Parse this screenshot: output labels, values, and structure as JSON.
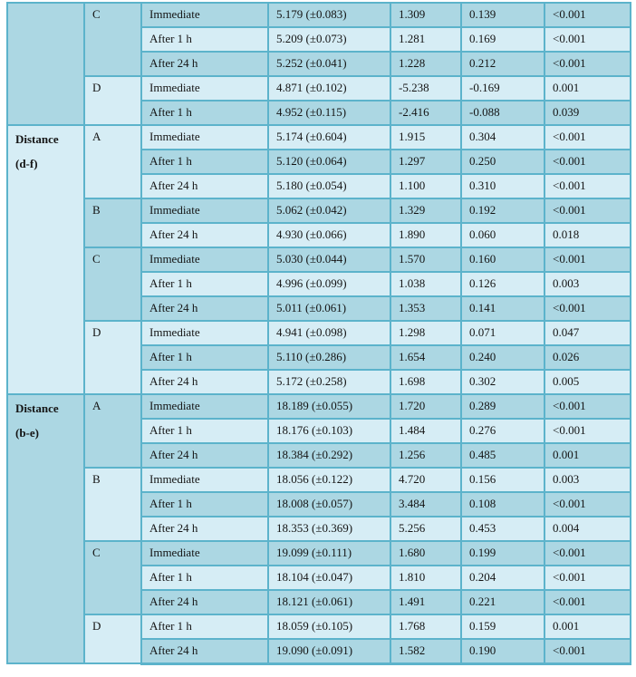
{
  "colors": {
    "row_medium": "#acd7e3",
    "row_light": "#d6edf5",
    "border": "#5cb3cb",
    "text": "#141414",
    "page_background": "#ffffff"
  },
  "table": {
    "description_note": "",
    "sections": [
      {
        "label": "",
        "label_lines": [],
        "groups": [
          {
            "letter": "C",
            "rows": [
              {
                "time": "Immediate",
                "value": "5.179 (±0.083)",
                "stat1": "1.309",
                "stat2": "0.139",
                "p": "<0.001"
              },
              {
                "time": "After 1 h",
                "value": "5.209 (±0.073)",
                "stat1": "1.281",
                "stat2": "0.169",
                "p": "<0.001"
              },
              {
                "time": "After 24 h",
                "value": "5.252 (±0.041)",
                "stat1": "1.228",
                "stat2": "0.212",
                "p": "<0.001"
              }
            ]
          },
          {
            "letter": "D",
            "rows": [
              {
                "time": "Immediate",
                "value": "4.871 (±0.102)",
                "stat1": "-5.238",
                "stat2": "-0.169",
                "p": "0.001"
              },
              {
                "time": "After 1 h",
                "value": "4.952 (±0.115)",
                "stat1": "-2.416",
                "stat2": "-0.088",
                "p": "0.039"
              }
            ]
          }
        ]
      },
      {
        "label": "Distance (d-f)",
        "label_lines": [
          "Distance",
          "(d-f)"
        ],
        "groups": [
          {
            "letter": "A",
            "rows": [
              {
                "time": "Immediate",
                "value": "5.174 (±0.604)",
                "stat1": "1.915",
                "stat2": "0.304",
                "p": "<0.001"
              },
              {
                "time": "After 1 h",
                "value": "5.120 (±0.064)",
                "stat1": "1.297",
                "stat2": "0.250",
                "p": "<0.001"
              },
              {
                "time": "After 24 h",
                "value": "5.180 (±0.054)",
                "stat1": "1.100",
                "stat2": "0.310",
                "p": "<0.001"
              }
            ]
          },
          {
            "letter": "B",
            "rows": [
              {
                "time": "Immediate",
                "value": "5.062 (±0.042)",
                "stat1": "1.329",
                "stat2": "0.192",
                "p": "<0.001"
              },
              {
                "time": "After 24 h",
                "value": "4.930 (±0.066)",
                "stat1": "1.890",
                "stat2": "0.060",
                "p": "0.018"
              }
            ]
          },
          {
            "letter": "C",
            "rows": [
              {
                "time": "Immediate",
                "value": "5.030 (±0.044)",
                "stat1": "1.570",
                "stat2": "0.160",
                "p": "<0.001"
              },
              {
                "time": "After 1 h",
                "value": "4.996 (±0.099)",
                "stat1": "1.038",
                "stat2": "0.126",
                "p": "0.003"
              },
              {
                "time": "After 24 h",
                "value": "5.011 (±0.061)",
                "stat1": "1.353",
                "stat2": "0.141",
                "p": "<0.001"
              }
            ]
          },
          {
            "letter": "D",
            "rows": [
              {
                "time": "Immediate",
                "value": "4.941 (±0.098)",
                "stat1": "1.298",
                "stat2": "0.071",
                "p": "0.047"
              },
              {
                "time": "After 1 h",
                "value": "5.110 (±0.286)",
                "stat1": "1.654",
                "stat2": "0.240",
                "p": "0.026"
              },
              {
                "time": "After 24 h",
                "value": "5.172 (±0.258)",
                "stat1": "1.698",
                "stat2": "0.302",
                "p": "0.005"
              }
            ]
          }
        ]
      },
      {
        "label": "Distance (b-e)",
        "label_lines": [
          "Distance",
          "(b-e)"
        ],
        "groups": [
          {
            "letter": "A",
            "rows": [
              {
                "time": "Immediate",
                "value": "18.189 (±0.055)",
                "stat1": "1.720",
                "stat2": "0.289",
                "p": "<0.001"
              },
              {
                "time": "After 1 h",
                "value": "18.176 (±0.103)",
                "stat1": "1.484",
                "stat2": "0.276",
                "p": "<0.001"
              },
              {
                "time": "After 24 h",
                "value": "18.384 (±0.292)",
                "stat1": "1.256",
                "stat2": "0.485",
                "p": "0.001"
              }
            ]
          },
          {
            "letter": "B",
            "rows": [
              {
                "time": "Immediate",
                "value": "18.056 (±0.122)",
                "stat1": "4.720",
                "stat2": "0.156",
                "p": "0.003"
              },
              {
                "time": "After 1 h",
                "value": "18.008 (±0.057)",
                "stat1": "3.484",
                "stat2": "0.108",
                "p": "<0.001"
              },
              {
                "time": "After 24 h",
                "value": "18.353 (±0.369)",
                "stat1": "5.256",
                "stat2": "0.453",
                "p": "0.004"
              }
            ]
          },
          {
            "letter": "C",
            "rows": [
              {
                "time": "Immediate",
                "value": "19.099 (±0.111)",
                "stat1": "1.680",
                "stat2": "0.199",
                "p": "<0.001"
              },
              {
                "time": "After 1 h",
                "value": "18.104 (±0.047)",
                "stat1": "1.810",
                "stat2": "0.204",
                "p": "<0.001"
              },
              {
                "time": "After 24 h",
                "value": "18.121 (±0.061)",
                "stat1": "1.491",
                "stat2": "0.221",
                "p": "<0.001"
              }
            ]
          },
          {
            "letter": "D",
            "rows": [
              {
                "time": "After 1 h",
                "value": "18.059 (±0.105)",
                "stat1": "1.768",
                "stat2": "0.159",
                "p": "0.001"
              },
              {
                "time": "After 24 h",
                "value": "19.090 (±0.091)",
                "stat1": "1.582",
                "stat2": "0.190",
                "p": "<0.001"
              }
            ]
          }
        ]
      }
    ]
  }
}
